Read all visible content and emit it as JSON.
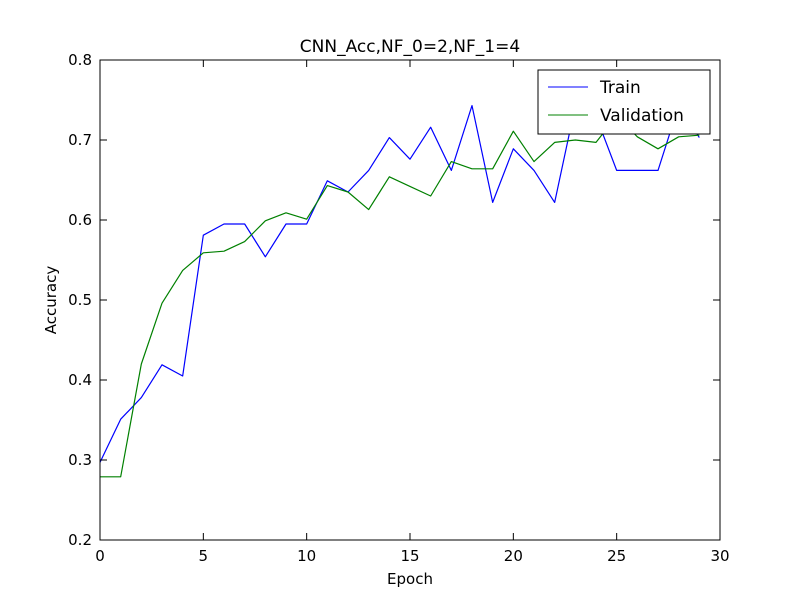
{
  "chart_data": {
    "type": "line",
    "title": "CNN_Acc,NF_0=2,NF_1=4",
    "xlabel": "Epoch",
    "ylabel": "Accuracy",
    "xlim": [
      0,
      30
    ],
    "ylim": [
      0.2,
      0.8
    ],
    "xticks": [
      0,
      5,
      10,
      15,
      20,
      25,
      30
    ],
    "yticks": [
      0.2,
      0.3,
      0.4,
      0.5,
      0.6,
      0.7,
      0.8
    ],
    "xtick_labels": [
      "0",
      "5",
      "10",
      "15",
      "20",
      "25",
      "30"
    ],
    "ytick_labels": [
      "0.2",
      "0.3",
      "0.4",
      "0.5",
      "0.6",
      "0.7",
      "0.8"
    ],
    "grid": false,
    "legend_position": "top-right",
    "x": [
      0,
      1,
      2,
      3,
      4,
      5,
      6,
      7,
      8,
      9,
      10,
      11,
      12,
      13,
      14,
      15,
      16,
      17,
      18,
      19,
      20,
      21,
      22,
      23,
      24,
      25,
      26,
      27,
      28,
      29
    ],
    "series": [
      {
        "name": "Train",
        "color": "#0000ff",
        "values": [
          0.297,
          0.351,
          0.378,
          0.419,
          0.405,
          0.581,
          0.595,
          0.595,
          0.554,
          0.595,
          0.595,
          0.649,
          0.635,
          0.662,
          0.703,
          0.676,
          0.716,
          0.662,
          0.743,
          0.622,
          0.689,
          0.662,
          0.622,
          0.743,
          0.73,
          0.662,
          0.662,
          0.662,
          0.743,
          0.703
        ]
      },
      {
        "name": "Validation",
        "color": "#008000",
        "values": [
          0.279,
          0.279,
          0.42,
          0.496,
          0.537,
          0.559,
          0.561,
          0.573,
          0.599,
          0.609,
          0.601,
          0.643,
          0.635,
          0.613,
          0.654,
          0.642,
          0.63,
          0.673,
          0.664,
          0.664,
          0.711,
          0.673,
          0.697,
          0.7,
          0.697,
          0.73,
          0.704,
          0.689,
          0.704,
          0.706
        ]
      }
    ]
  }
}
